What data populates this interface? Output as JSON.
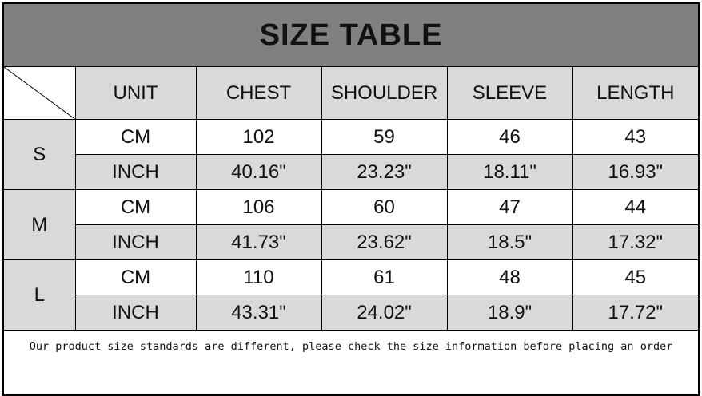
{
  "title": "SIZE TABLE",
  "columns": [
    "UNIT",
    "CHEST",
    "SHOULDER",
    "SLEEVE",
    "LENGTH"
  ],
  "sizes": [
    {
      "size": "S",
      "rows": [
        {
          "unit": "CM",
          "values": [
            "102",
            "59",
            "46",
            "43"
          ]
        },
        {
          "unit": "INCH",
          "values": [
            "40.16\"",
            "23.23\"",
            "18.11\"",
            "16.93\""
          ]
        }
      ]
    },
    {
      "size": "M",
      "rows": [
        {
          "unit": "CM",
          "values": [
            "106",
            "60",
            "47",
            "44"
          ]
        },
        {
          "unit": "INCH",
          "values": [
            "41.73\"",
            "23.62\"",
            "18.5\"",
            "17.32\""
          ]
        }
      ]
    },
    {
      "size": "L",
      "rows": [
        {
          "unit": "CM",
          "values": [
            "110",
            "61",
            "48",
            "45"
          ]
        },
        {
          "unit": "INCH",
          "values": [
            "43.31\"",
            "24.02\"",
            "18.9\"",
            "17.72\""
          ]
        }
      ]
    }
  ],
  "footer_note": "Our product size standards are different, please check the size information before placing an order",
  "colors": {
    "title_bg": "#808080",
    "cell_gray": "#d9d9d9",
    "border": "#000000"
  }
}
